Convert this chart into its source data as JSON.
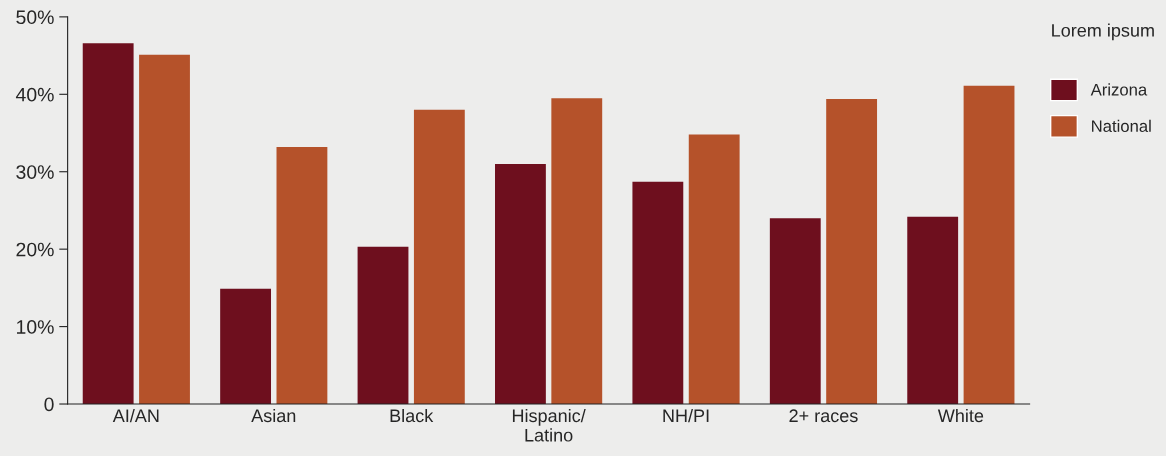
{
  "chart_data": {
    "type": "bar",
    "categories": [
      "AI/AN",
      "Asian",
      "Black",
      "Hispanic/\nLatino",
      "NH/PI",
      "2+ races",
      "White"
    ],
    "series": [
      {
        "name": "Arizona",
        "color": "#6e0f1e",
        "values": [
          46.6,
          14.9,
          20.3,
          31.0,
          28.7,
          24.0,
          24.2
        ]
      },
      {
        "name": "National",
        "color": "#b5522a",
        "values": [
          45.1,
          33.2,
          38.0,
          39.5,
          34.8,
          39.4,
          41.1
        ]
      }
    ],
    "legend_title": "Lorem ipsum",
    "legend": "top right",
    "ylim": [
      0,
      50
    ],
    "yticks": [
      0,
      {
        "value": 10,
        "label": "10%"
      },
      {
        "value": 20,
        "label": "20%"
      },
      {
        "value": 30,
        "label": "30%"
      },
      {
        "value": 40,
        "label": "40%"
      },
      {
        "value": 50,
        "label": "50%"
      }
    ],
    "grid": false
  }
}
